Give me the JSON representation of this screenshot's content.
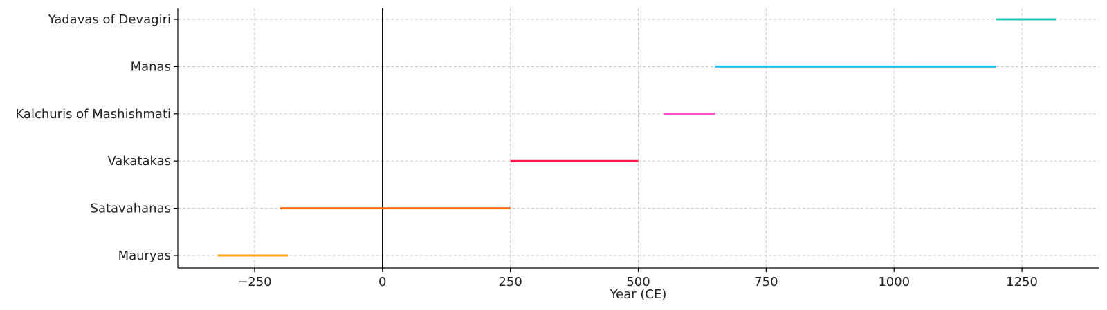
{
  "chart_data": {
    "type": "timeline",
    "title": "",
    "xlabel": "Year (CE)",
    "ylabel": "",
    "xlim": [
      -400,
      1400
    ],
    "xticks": [
      -250,
      0,
      250,
      500,
      750,
      1000,
      1250
    ],
    "xtick_labels": [
      "−250",
      "0",
      "250",
      "500",
      "750",
      "1000",
      "1250"
    ],
    "grid": true,
    "reference_line_x": 0,
    "series": [
      {
        "name": "Mauryas",
        "start": -322,
        "end": -185,
        "color": "#ffa81c"
      },
      {
        "name": "Satavahanas",
        "start": -200,
        "end": 250,
        "color": "#ff6a13"
      },
      {
        "name": "Vakatakas",
        "start": 250,
        "end": 500,
        "color": "#ff1a4b"
      },
      {
        "name": "Kalchuris of Mashishmati",
        "start": 550,
        "end": 650,
        "color": "#ff4fc0"
      },
      {
        "name": "Manas",
        "start": 650,
        "end": 1200,
        "color": "#1fbff0"
      },
      {
        "name": "Yadavas of Devagiri",
        "start": 1200,
        "end": 1317,
        "color": "#1fc7b5"
      }
    ]
  }
}
